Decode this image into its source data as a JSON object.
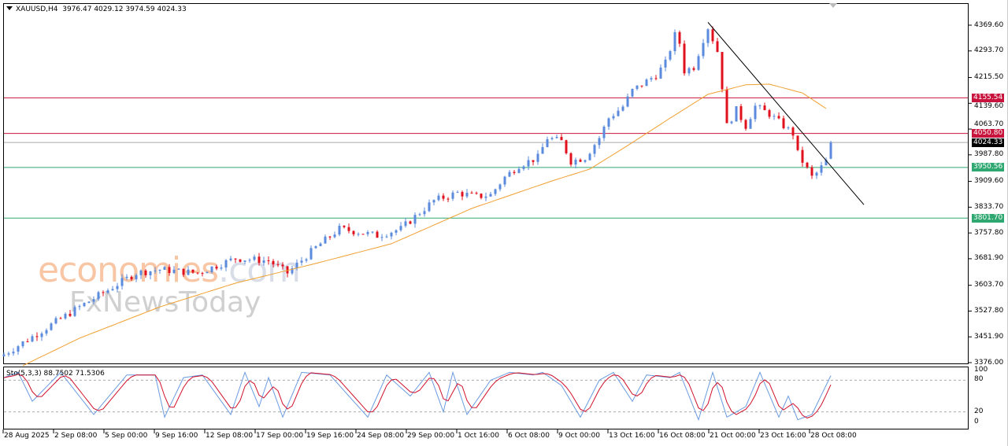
{
  "header": {
    "symbol_timeframe": "XAUUSD,H4",
    "ohlc": "3976.47 4029.12 3974.59 4024.33"
  },
  "watermark": {
    "brand1": "economies",
    "brand1_suffix": ".com",
    "brand2": "FxNewsToday"
  },
  "stochastic": {
    "label": "Sto(5,3,3) 88.7502 71.5306",
    "levels": [
      "100",
      "80",
      "20",
      "0"
    ]
  },
  "colors": {
    "bull": "#5b8bdc",
    "bear": "#e0101c",
    "ma": "#f0a030",
    "resistance": "#c8143c",
    "support": "#2ea870",
    "current": "#000000",
    "stoch_main": "#6a9be0",
    "stoch_signal": "#d0102a"
  },
  "chart_data": {
    "type": "candlestick",
    "symbol": "XAUUSD",
    "timeframe": "H4",
    "ylim": [
      3376.0,
      4369.6
    ],
    "y_ticks": [
      "4369.60",
      "4293.70",
      "4215.50",
      "4139.60",
      "4063.70",
      "3987.80",
      "3909.60",
      "3833.70",
      "3757.80",
      "3681.90",
      "3603.70",
      "3527.80",
      "3451.90",
      "3376.00"
    ],
    "x_ticks": [
      "28 Aug 2025",
      "2 Sep 08:00",
      "5 Sep 00:00",
      "9 Sep 16:00",
      "12 Sep 08:00",
      "17 Sep 00:00",
      "19 Sep 16:00",
      "24 Sep 08:00",
      "29 Sep 00:00",
      "1 Oct 16:00",
      "6 Oct 08:00",
      "9 Oct 00:00",
      "13 Oct 16:00",
      "16 Oct 08:00",
      "21 Oct 00:00",
      "23 Oct 16:00",
      "28 Oct 08:00"
    ],
    "bar_count": 176,
    "close_path": [
      [
        0,
        3400
      ],
      [
        8,
        3470
      ],
      [
        16,
        3540
      ],
      [
        28,
        3640
      ],
      [
        33,
        3650
      ],
      [
        41,
        3640
      ],
      [
        49,
        3683
      ],
      [
        56,
        3676
      ],
      [
        60,
        3640
      ],
      [
        66,
        3715
      ],
      [
        71,
        3770
      ],
      [
        74,
        3763
      ],
      [
        79,
        3750
      ],
      [
        84,
        3770
      ],
      [
        88,
        3818
      ],
      [
        91,
        3853
      ],
      [
        96,
        3876
      ],
      [
        100,
        3865
      ],
      [
        103,
        3870
      ],
      [
        106,
        3922
      ],
      [
        109,
        3957
      ],
      [
        113,
        3980
      ],
      [
        115,
        4038
      ],
      [
        118,
        4027
      ],
      [
        120,
        3969
      ],
      [
        123,
        3980
      ],
      [
        126,
        4038
      ],
      [
        128,
        4096
      ],
      [
        131,
        4130
      ],
      [
        133,
        4177
      ],
      [
        138,
        4223
      ],
      [
        140,
        4258
      ],
      [
        142,
        4340
      ],
      [
        143,
        4317
      ],
      [
        144,
        4235
      ],
      [
        146,
        4247
      ],
      [
        148,
        4328
      ],
      [
        149,
        4363
      ],
      [
        151,
        4293
      ],
      [
        152,
        4189
      ],
      [
        153,
        4073
      ],
      [
        155,
        4120
      ],
      [
        157,
        4073
      ],
      [
        159,
        4131
      ],
      [
        162,
        4108
      ],
      [
        164,
        4085
      ],
      [
        167,
        4050
      ],
      [
        168,
        3992
      ],
      [
        171,
        3922
      ],
      [
        172,
        3934
      ],
      [
        174,
        3969
      ],
      [
        175,
        4024.33
      ]
    ],
    "last_candle": {
      "open": 3976.47,
      "high": 4029.12,
      "low": 3974.59,
      "close": 4024.33
    },
    "moving_average": [
      [
        4,
        3367
      ],
      [
        16,
        3448
      ],
      [
        33,
        3540
      ],
      [
        49,
        3610
      ],
      [
        66,
        3668
      ],
      [
        82,
        3726
      ],
      [
        99,
        3830
      ],
      [
        116,
        3911
      ],
      [
        124,
        3946
      ],
      [
        132,
        4015
      ],
      [
        141,
        4096
      ],
      [
        149,
        4166
      ],
      [
        157,
        4194
      ],
      [
        162,
        4196
      ],
      [
        169,
        4170
      ],
      [
        174,
        4124
      ]
    ],
    "horizontal_levels": [
      {
        "price": "4155.54",
        "kind": "resistance"
      },
      {
        "price": "4050.80",
        "kind": "resistance"
      },
      {
        "price": "4024.33",
        "kind": "current"
      },
      {
        "price": "3950.56",
        "kind": "support"
      },
      {
        "price": "3801.70",
        "kind": "support"
      }
    ],
    "trendline": [
      [
        149,
        4378
      ],
      [
        182,
        3841
      ]
    ],
    "stochastic_main": [
      [
        0,
        85
      ],
      [
        3,
        95
      ],
      [
        6,
        40
      ],
      [
        12,
        95
      ],
      [
        19,
        15
      ],
      [
        26,
        90
      ],
      [
        32,
        90
      ],
      [
        34,
        10
      ],
      [
        38,
        85
      ],
      [
        42,
        90
      ],
      [
        48,
        15
      ],
      [
        51,
        95
      ],
      [
        54,
        30
      ],
      [
        56,
        85
      ],
      [
        59,
        10
      ],
      [
        63,
        95
      ],
      [
        69,
        90
      ],
      [
        72,
        60
      ],
      [
        77,
        10
      ],
      [
        81,
        90
      ],
      [
        86,
        50
      ],
      [
        90,
        95
      ],
      [
        93,
        20
      ],
      [
        95,
        95
      ],
      [
        98,
        15
      ],
      [
        103,
        80
      ],
      [
        107,
        95
      ],
      [
        112,
        90
      ],
      [
        114,
        95
      ],
      [
        118,
        70
      ],
      [
        122,
        10
      ],
      [
        126,
        80
      ],
      [
        129,
        95
      ],
      [
        133,
        40
      ],
      [
        136,
        90
      ],
      [
        141,
        85
      ],
      [
        143,
        95
      ],
      [
        147,
        5
      ],
      [
        150,
        95
      ],
      [
        153,
        10
      ],
      [
        157,
        30
      ],
      [
        160,
        95
      ],
      [
        164,
        10
      ],
      [
        166,
        50
      ],
      [
        168,
        5
      ],
      [
        171,
        15
      ],
      [
        175,
        88.75
      ]
    ],
    "stochastic_signal_last": 71.53
  }
}
